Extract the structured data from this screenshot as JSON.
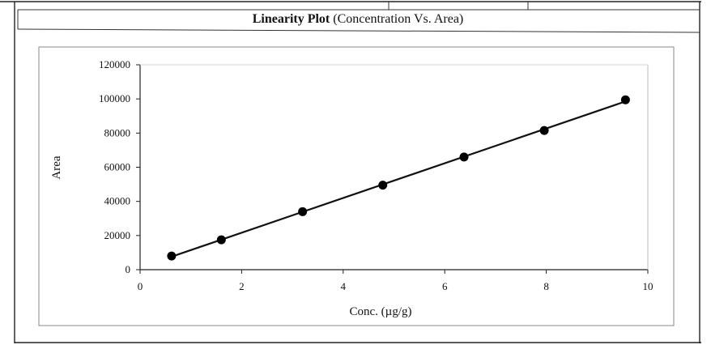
{
  "chart_data": {
    "type": "scatter",
    "title_bold": "Linearity Plot",
    "title_rest": " (Concentration Vs. Area)",
    "xlabel": "Conc. (µg/g)",
    "ylabel": "Area",
    "xlim": [
      0,
      10
    ],
    "ylim": [
      0,
      120000
    ],
    "x_ticks": [
      0,
      2,
      4,
      6,
      8,
      10
    ],
    "y_ticks": [
      0,
      20000,
      40000,
      60000,
      80000,
      100000,
      120000
    ],
    "x_tick_labels": [
      "0",
      "2",
      "4",
      "6",
      "8",
      "10"
    ],
    "y_tick_labels": [
      "0",
      "20000",
      "40000",
      "60000",
      "80000",
      "100000",
      "120000"
    ],
    "grid": false,
    "legend": "none",
    "trendline": "linear",
    "series": [
      {
        "x": [
          0.62,
          1.6,
          3.2,
          4.78,
          6.38,
          7.96,
          9.56
        ],
        "y": [
          8000,
          17500,
          34000,
          49500,
          66000,
          81500,
          99500
        ]
      }
    ]
  }
}
